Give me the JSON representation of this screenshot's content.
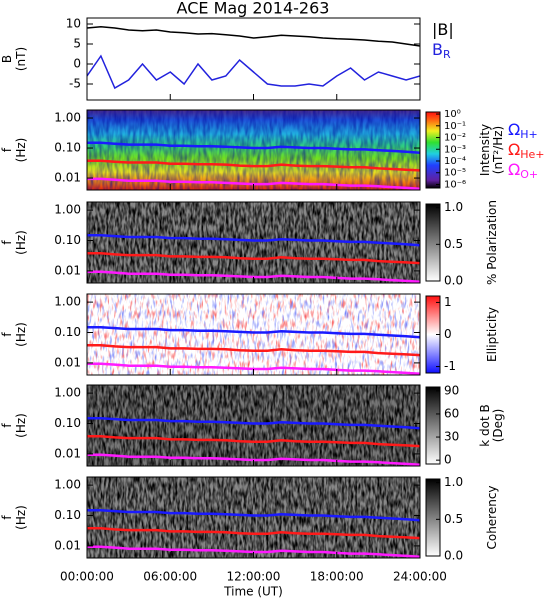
{
  "chart_data": [
    {
      "type": "line",
      "title": "ACE Mag 2014-263",
      "ylabel": [
        "B",
        "(nT)"
      ],
      "x": [
        0,
        1,
        2,
        3,
        4,
        5,
        6,
        7,
        8,
        9,
        10,
        11,
        12,
        13,
        14,
        15,
        16,
        17,
        18,
        19,
        20,
        21,
        22,
        23,
        24
      ],
      "xlim": [
        0,
        24
      ],
      "ylim": [
        -9,
        11.5
      ],
      "yticks": [
        -5,
        0,
        5,
        10
      ],
      "series": [
        {
          "name": "|B|",
          "color": "#000000",
          "values": [
            9,
            9.3,
            9,
            8.5,
            8.3,
            8.5,
            8,
            7.8,
            7.5,
            7.6,
            7.3,
            7,
            6.5,
            6.8,
            7.2,
            7,
            6.8,
            6.5,
            6.3,
            6.2,
            6,
            5.7,
            5.5,
            5,
            4.5
          ]
        },
        {
          "name": "B",
          "subscript": "R",
          "color": "#2222dd",
          "values": [
            -3,
            2,
            -6,
            -4,
            0,
            -4,
            -2,
            -5,
            0,
            -4,
            -3,
            1,
            -2,
            -5,
            -5.5,
            -5.5,
            -5,
            -5.5,
            -3,
            -1,
            -4,
            -2,
            -3,
            -4,
            -3
          ]
        }
      ]
    },
    {
      "type": "heatmap",
      "ylabel": [
        "f",
        "(Hz)"
      ],
      "ylim": [
        0.004,
        1.85
      ],
      "log_y": true,
      "yticks": [
        {
          "value": 1,
          "label": "1.00"
        },
        {
          "value": 0.1,
          "label": "0.10"
        },
        {
          "value": 0.01,
          "label": "0.01"
        }
      ],
      "colorbar": {
        "label": [
          "Intensity",
          "(nT²/Hz)"
        ],
        "lim": [
          5e-07,
          1.5
        ],
        "log": true,
        "ticks": [
          {
            "value": 1,
            "label": "10⁰"
          },
          {
            "value": 0.1,
            "label": "10⁻¹"
          },
          {
            "value": 0.01,
            "label": "10⁻²"
          },
          {
            "value": 0.001,
            "label": "10⁻³"
          },
          {
            "value": 0.0001,
            "label": "10⁻⁴"
          },
          {
            "value": 1e-05,
            "label": "10⁻⁵"
          },
          {
            "value": 1e-06,
            "label": "10⁻⁶"
          }
        ]
      },
      "series": [
        {
          "name": "Ω",
          "subscript": "H+",
          "color": "#1a1aff",
          "values": [
            0.15,
            0.15,
            0.14,
            0.13,
            0.13,
            0.13,
            0.12,
            0.12,
            0.115,
            0.115,
            0.11,
            0.105,
            0.1,
            0.1,
            0.11,
            0.105,
            0.1,
            0.1,
            0.095,
            0.09,
            0.09,
            0.085,
            0.08,
            0.075,
            0.07
          ]
        },
        {
          "name": "Ω",
          "subscript": "He+",
          "color": "#ff1a1a",
          "values": [
            0.038,
            0.038,
            0.035,
            0.033,
            0.033,
            0.033,
            0.03,
            0.03,
            0.029,
            0.029,
            0.028,
            0.026,
            0.025,
            0.025,
            0.028,
            0.026,
            0.025,
            0.025,
            0.024,
            0.023,
            0.023,
            0.021,
            0.02,
            0.019,
            0.018
          ]
        },
        {
          "name": "Ω",
          "subscript": "O+",
          "color": "#ff1aff",
          "values": [
            0.0094,
            0.0094,
            0.0088,
            0.0081,
            0.0081,
            0.0081,
            0.0075,
            0.0075,
            0.0072,
            0.0072,
            0.0069,
            0.0066,
            0.0063,
            0.0063,
            0.0069,
            0.0066,
            0.0063,
            0.0063,
            0.0059,
            0.0056,
            0.0056,
            0.0053,
            0.005,
            0.0047,
            0.0044
          ]
        }
      ]
    },
    {
      "type": "heatmap",
      "ylabel": [
        "f",
        "(Hz)"
      ],
      "ylim": [
        0.004,
        1.85
      ],
      "log_y": true,
      "yticks": [
        {
          "value": 1,
          "label": "1.00"
        },
        {
          "value": 0.1,
          "label": "0.10"
        },
        {
          "value": 0.01,
          "label": "0.01"
        }
      ],
      "colorbar": {
        "label": [
          "% Polarization"
        ],
        "lim": [
          0,
          1.05
        ],
        "ticks": [
          {
            "value": 0,
            "label": "0.0"
          },
          {
            "value": 0.5,
            "label": "0.5"
          },
          {
            "value": 1,
            "label": "1.0"
          }
        ]
      }
    },
    {
      "type": "heatmap",
      "ylabel": [
        "f",
        "(Hz)"
      ],
      "ylim": [
        0.004,
        1.85
      ],
      "log_y": true,
      "yticks": [
        {
          "value": 1,
          "label": "1.00"
        },
        {
          "value": 0.1,
          "label": "0.10"
        },
        {
          "value": 0.01,
          "label": "0.01"
        }
      ],
      "colorbar": {
        "label": [
          "Ellipticity"
        ],
        "lim": [
          -1.2,
          1.2
        ],
        "ticks": [
          -1,
          0,
          1
        ]
      }
    },
    {
      "type": "heatmap",
      "ylabel": [
        "f",
        "(Hz)"
      ],
      "ylim": [
        0.004,
        1.85
      ],
      "log_y": true,
      "yticks": [
        {
          "value": 1,
          "label": "1.00"
        },
        {
          "value": 0.1,
          "label": "0.10"
        },
        {
          "value": 0.01,
          "label": "0.01"
        }
      ],
      "colorbar": {
        "label": [
          "k dot B",
          "(Deg)"
        ],
        "lim": [
          -5,
          95
        ],
        "ticks": [
          0,
          30,
          60,
          90
        ]
      }
    },
    {
      "type": "heatmap",
      "ylabel": [
        "f",
        "(Hz)"
      ],
      "ylim": [
        0.004,
        1.85
      ],
      "log_y": true,
      "yticks": [
        {
          "value": 1,
          "label": "1.00"
        },
        {
          "value": 0.1,
          "label": "0.10"
        },
        {
          "value": 0.01,
          "label": "0.01"
        }
      ],
      "colorbar": {
        "label": [
          "Coherency"
        ],
        "lim": [
          0,
          1.05
        ],
        "ticks": [
          {
            "value": 0,
            "label": "0.0"
          },
          {
            "value": 0.5,
            "label": "0.5"
          },
          {
            "value": 1,
            "label": "1.0"
          }
        ]
      },
      "xlabel": "Time (UT)",
      "xticks": [
        {
          "value": 0,
          "label": "00:00:00"
        },
        {
          "value": 6,
          "label": "06:00:00"
        },
        {
          "value": 12,
          "label": "12:00:00"
        },
        {
          "value": 18,
          "label": "18:00:00"
        },
        {
          "value": 24,
          "label": "24:00:00"
        }
      ]
    }
  ]
}
